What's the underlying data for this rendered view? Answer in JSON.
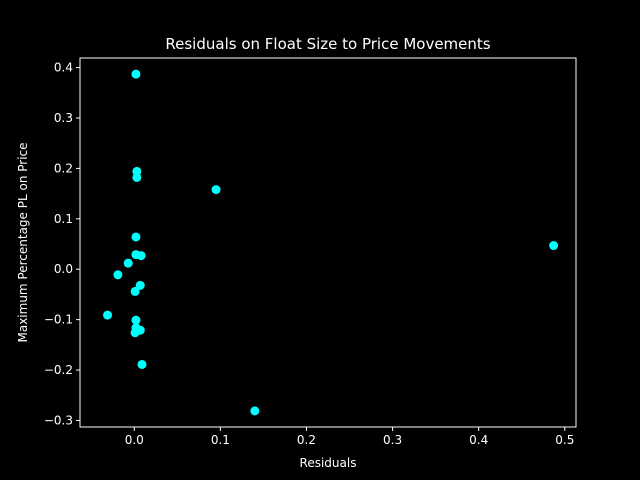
{
  "chart_data": {
    "type": "scatter",
    "title": "Residuals on Float Size to Price Movements",
    "xlabel": "Residuals",
    "ylabel": "Maximum Percentage PL on Price",
    "xlim": [
      -0.063,
      0.513
    ],
    "ylim": [
      -0.313,
      0.419
    ],
    "xticks": [
      {
        "value": 0.0,
        "label": "0.0"
      },
      {
        "value": 0.1,
        "label": "0.1"
      },
      {
        "value": 0.2,
        "label": "0.2"
      },
      {
        "value": 0.3,
        "label": "0.3"
      },
      {
        "value": 0.4,
        "label": "0.4"
      },
      {
        "value": 0.5,
        "label": "0.5"
      }
    ],
    "yticks": [
      {
        "value": -0.3,
        "label": "−0.3"
      },
      {
        "value": -0.2,
        "label": "−0.2"
      },
      {
        "value": -0.1,
        "label": "−0.1"
      },
      {
        "value": 0.0,
        "label": "0.0"
      },
      {
        "value": 0.1,
        "label": "0.1"
      },
      {
        "value": 0.2,
        "label": "0.2"
      },
      {
        "value": 0.3,
        "label": "0.3"
      },
      {
        "value": 0.4,
        "label": "0.4"
      }
    ],
    "grid": false,
    "colors": {
      "background": "#000000",
      "foreground": "#ffffff",
      "marker": "#00ffff"
    },
    "points": [
      {
        "x": 0.002,
        "y": 0.387
      },
      {
        "x": 0.003,
        "y": 0.194
      },
      {
        "x": 0.003,
        "y": 0.182
      },
      {
        "x": 0.095,
        "y": 0.158
      },
      {
        "x": 0.002,
        "y": 0.064
      },
      {
        "x": 0.002,
        "y": 0.029
      },
      {
        "x": 0.008,
        "y": 0.027
      },
      {
        "x": 0.487,
        "y": 0.047
      },
      {
        "x": -0.007,
        "y": 0.012
      },
      {
        "x": -0.019,
        "y": -0.011
      },
      {
        "x": 0.007,
        "y": -0.032
      },
      {
        "x": 0.001,
        "y": -0.044
      },
      {
        "x": -0.031,
        "y": -0.091
      },
      {
        "x": 0.002,
        "y": -0.101
      },
      {
        "x": 0.002,
        "y": -0.116
      },
      {
        "x": 0.007,
        "y": -0.121
      },
      {
        "x": 0.001,
        "y": -0.126
      },
      {
        "x": 0.009,
        "y": -0.189
      },
      {
        "x": 0.14,
        "y": -0.281
      }
    ]
  }
}
